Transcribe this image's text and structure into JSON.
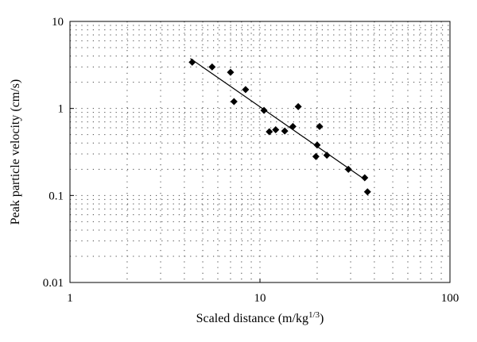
{
  "chart_data": {
    "type": "scatter",
    "title": "",
    "xlabel": "Scaled distance (m/kg",
    "xlabel_sup": "1/3",
    "xlabel_end": ")",
    "ylabel": "Peak particle velocity (cm/s)",
    "xscale": "log",
    "yscale": "log",
    "xlim": [
      1,
      100
    ],
    "ylim": [
      0.01,
      10
    ],
    "xticks": [
      {
        "value": 1,
        "label": "1"
      },
      {
        "value": 10,
        "label": "10"
      },
      {
        "value": 100,
        "label": "100"
      }
    ],
    "yticks": [
      {
        "value": 10,
        "label": "10"
      },
      {
        "value": 1,
        "label": "1"
      },
      {
        "value": 0.1,
        "label": "0.1"
      },
      {
        "value": 0.01,
        "label": "0.01"
      }
    ],
    "grid": "dotted, major and minor",
    "legend": "none",
    "marker": "diamond",
    "marker_color": "#000000",
    "series": [
      {
        "points": [
          {
            "x": 4.4,
            "y": 3.4
          },
          {
            "x": 5.6,
            "y": 3.0
          },
          {
            "x": 7.0,
            "y": 2.6
          },
          {
            "x": 7.3,
            "y": 1.2
          },
          {
            "x": 8.4,
            "y": 1.65
          },
          {
            "x": 10.5,
            "y": 0.95
          },
          {
            "x": 11.2,
            "y": 0.54
          },
          {
            "x": 12.1,
            "y": 0.57
          },
          {
            "x": 13.5,
            "y": 0.55
          },
          {
            "x": 14.9,
            "y": 0.62
          },
          {
            "x": 15.9,
            "y": 1.05
          },
          {
            "x": 20.0,
            "y": 0.38
          },
          {
            "x": 20.6,
            "y": 0.62
          },
          {
            "x": 19.7,
            "y": 0.28
          },
          {
            "x": 22.5,
            "y": 0.29
          },
          {
            "x": 29.2,
            "y": 0.2
          },
          {
            "x": 35.6,
            "y": 0.16
          },
          {
            "x": 36.8,
            "y": 0.11
          }
        ]
      }
    ],
    "fit_line": {
      "x": [
        4.3,
        36.0
      ],
      "y": [
        3.75,
        0.15
      ],
      "color": "#000000"
    }
  }
}
